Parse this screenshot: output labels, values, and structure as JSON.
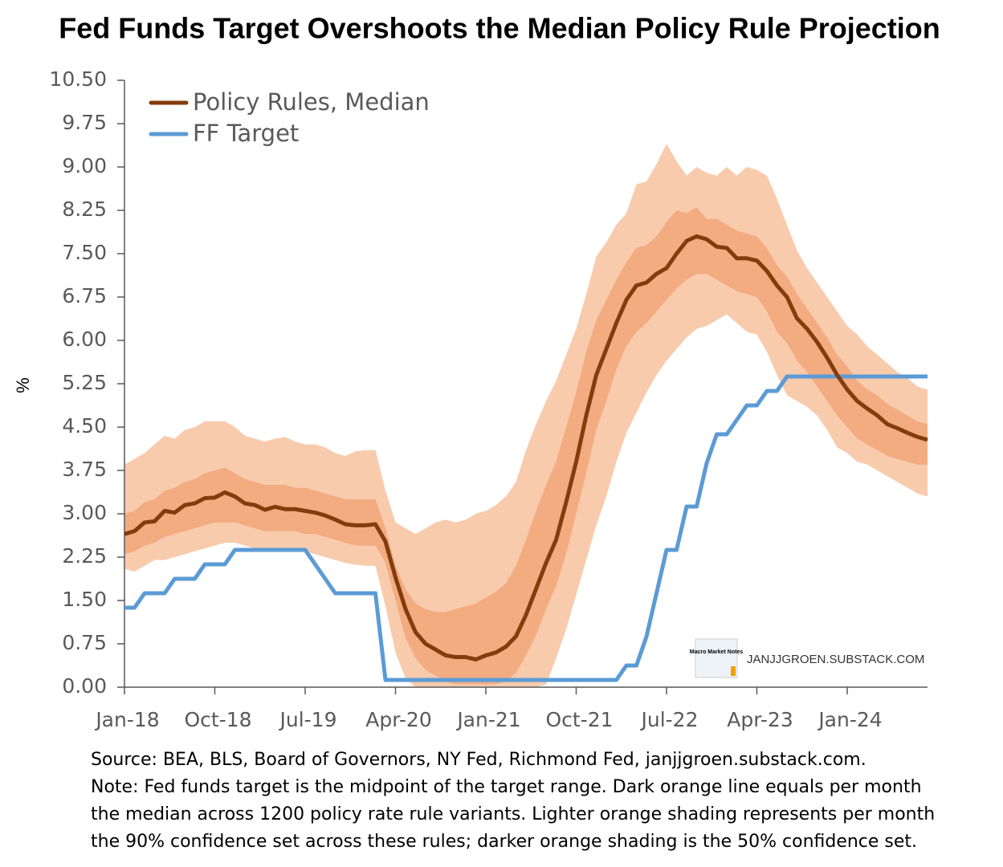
{
  "chart_data": {
    "type": "line",
    "title": "Fed Funds Target Overshoots the Median Policy Rule Projection",
    "ylabel": "%",
    "categories": [
      "Jan-18",
      null,
      null,
      null,
      null,
      null,
      null,
      null,
      null,
      "Oct-18",
      null,
      null,
      null,
      null,
      null,
      null,
      null,
      null,
      "Jul-19",
      null,
      null,
      null,
      null,
      null,
      null,
      null,
      null,
      "Apr-20",
      null,
      null,
      null,
      null,
      null,
      null,
      null,
      null,
      "Jan-21",
      null,
      null,
      null,
      null,
      null,
      null,
      null,
      null,
      "Oct-21",
      null,
      null,
      null,
      null,
      null,
      null,
      null,
      null,
      "Jul-22",
      null,
      null,
      null,
      null,
      null,
      null,
      null,
      null,
      "Apr-23",
      null,
      null,
      null,
      null,
      null,
      null,
      null,
      null,
      "Jan-24",
      null,
      null,
      null,
      null,
      null,
      null,
      null,
      null
    ],
    "ylim": [
      0,
      10.5
    ],
    "yticks": [
      {
        "value": 0,
        "label": "0.00"
      },
      0.75,
      {
        "value": 1.5,
        "label": "1.50"
      },
      2.25,
      {
        "value": 3,
        "label": "3.00"
      },
      3.75,
      {
        "value": 4.5,
        "label": "4.50"
      },
      5.25,
      {
        "value": 6,
        "label": "6.00"
      },
      6.75,
      {
        "value": 7.5,
        "label": "7.50"
      },
      8.25,
      {
        "value": 9,
        "label": "9.00"
      },
      9.75,
      {
        "value": 10.5,
        "label": "10.50"
      }
    ],
    "grid": false,
    "legend": "upper left",
    "series": [
      {
        "name": "Policy Rules, Median",
        "color": "#843c0c",
        "values": [
          2.65,
          2.7,
          2.85,
          2.87,
          3.05,
          3.02,
          3.15,
          3.18,
          3.27,
          3.28,
          3.37,
          3.3,
          3.18,
          3.15,
          3.07,
          3.12,
          3.08,
          3.08,
          3.05,
          3.02,
          2.97,
          2.9,
          2.82,
          2.8,
          2.8,
          2.82,
          2.52,
          1.9,
          1.35,
          0.95,
          0.75,
          0.65,
          0.55,
          0.52,
          0.52,
          0.48,
          0.55,
          0.6,
          0.7,
          0.88,
          1.25,
          1.7,
          2.15,
          2.55,
          3.2,
          3.9,
          4.7,
          5.4,
          5.85,
          6.3,
          6.7,
          6.95,
          7.0,
          7.15,
          7.25,
          7.5,
          7.72,
          7.8,
          7.75,
          7.62,
          7.6,
          7.42,
          7.42,
          7.38,
          7.2,
          6.95,
          6.75,
          6.38,
          6.2,
          5.97,
          5.7,
          5.4,
          5.15,
          4.95,
          4.82,
          4.7,
          4.55,
          4.48,
          4.4,
          4.33,
          4.28
        ]
      },
      {
        "name": "FF Target",
        "color": "#5b9bd5",
        "values": [
          1.375,
          1.375,
          1.625,
          1.625,
          1.625,
          1.875,
          1.875,
          1.875,
          2.125,
          2.125,
          2.125,
          2.375,
          2.375,
          2.375,
          2.375,
          2.375,
          2.375,
          2.375,
          2.375,
          2.125,
          1.875,
          1.625,
          1.625,
          1.625,
          1.625,
          1.625,
          0.125,
          0.125,
          0.125,
          0.125,
          0.125,
          0.125,
          0.125,
          0.125,
          0.125,
          0.125,
          0.125,
          0.125,
          0.125,
          0.125,
          0.125,
          0.125,
          0.125,
          0.125,
          0.125,
          0.125,
          0.125,
          0.125,
          0.125,
          0.125,
          0.375,
          0.375,
          0.875,
          1.625,
          2.375,
          2.375,
          3.125,
          3.125,
          3.875,
          4.375,
          4.375,
          4.625,
          4.875,
          4.875,
          5.125,
          5.125,
          5.375,
          5.375,
          5.375,
          5.375,
          5.375,
          5.375,
          5.375,
          5.375,
          5.375,
          5.375,
          5.375,
          5.375,
          5.375,
          5.375,
          5.375
        ]
      }
    ],
    "bands": [
      {
        "color": "#f8cbad",
        "lower": [
          2.05,
          2.0,
          2.1,
          2.2,
          2.2,
          2.25,
          2.3,
          2.35,
          2.4,
          2.45,
          2.5,
          2.5,
          2.45,
          2.4,
          2.35,
          2.35,
          2.35,
          2.35,
          2.35,
          2.3,
          2.25,
          2.2,
          2.15,
          2.12,
          2.1,
          2.1,
          1.4,
          0.6,
          0.15,
          0,
          0,
          0,
          0,
          0,
          0,
          0,
          0,
          0,
          0,
          0,
          0,
          0,
          0.05,
          0.5,
          1.0,
          1.6,
          2.2,
          2.8,
          3.3,
          3.9,
          4.4,
          4.75,
          5.1,
          5.4,
          5.65,
          5.85,
          6.05,
          6.2,
          6.25,
          6.35,
          6.45,
          6.3,
          6.15,
          6.1,
          5.8,
          5.4,
          5.05,
          4.95,
          4.85,
          4.7,
          4.45,
          4.15,
          4.05,
          3.9,
          3.85,
          3.75,
          3.65,
          3.55,
          3.45,
          3.35,
          3.3
        ],
        "upper": [
          3.85,
          3.95,
          4.05,
          4.2,
          4.35,
          4.3,
          4.45,
          4.5,
          4.6,
          4.6,
          4.6,
          4.5,
          4.35,
          4.3,
          4.25,
          4.3,
          4.33,
          4.25,
          4.2,
          4.2,
          4.15,
          4.05,
          4.0,
          4.08,
          4.1,
          4.1,
          3.4,
          2.85,
          2.75,
          2.65,
          2.75,
          2.85,
          2.9,
          2.85,
          2.9,
          3.0,
          3.05,
          3.15,
          3.3,
          3.55,
          4.1,
          4.55,
          4.95,
          5.3,
          5.75,
          6.2,
          6.8,
          7.45,
          7.7,
          8.0,
          8.2,
          8.7,
          8.75,
          9.05,
          9.4,
          9.1,
          8.85,
          9.0,
          8.9,
          8.85,
          9.0,
          8.85,
          9.0,
          8.95,
          8.85,
          8.45,
          8.0,
          7.55,
          7.25,
          7.0,
          6.75,
          6.5,
          6.25,
          6.1,
          5.9,
          5.75,
          5.6,
          5.45,
          5.35,
          5.2,
          5.15
        ]
      },
      {
        "color": "#f2ac80",
        "lower": [
          2.3,
          2.35,
          2.45,
          2.5,
          2.6,
          2.65,
          2.7,
          2.75,
          2.8,
          2.85,
          2.85,
          2.85,
          2.8,
          2.75,
          2.7,
          2.7,
          2.7,
          2.7,
          2.65,
          2.65,
          2.6,
          2.55,
          2.5,
          2.45,
          2.45,
          2.45,
          2.15,
          1.5,
          0.85,
          0.5,
          0.3,
          0.2,
          0.1,
          0.05,
          0.05,
          0.05,
          0.05,
          0.05,
          0.1,
          0.25,
          0.55,
          0.9,
          1.35,
          1.75,
          2.3,
          3.0,
          3.7,
          4.45,
          4.95,
          5.5,
          5.9,
          6.15,
          6.3,
          6.5,
          6.7,
          6.9,
          7.05,
          7.15,
          7.15,
          7.05,
          6.95,
          6.85,
          6.8,
          6.75,
          6.5,
          6.15,
          5.95,
          5.65,
          5.45,
          5.2,
          4.95,
          4.7,
          4.5,
          4.3,
          4.2,
          4.1,
          4.0,
          3.95,
          3.9,
          3.85,
          3.85
        ],
        "upper": [
          3.0,
          3.05,
          3.2,
          3.25,
          3.4,
          3.45,
          3.55,
          3.6,
          3.7,
          3.75,
          3.8,
          3.7,
          3.6,
          3.55,
          3.5,
          3.5,
          3.5,
          3.45,
          3.45,
          3.4,
          3.35,
          3.3,
          3.25,
          3.25,
          3.25,
          3.25,
          2.75,
          2.1,
          1.7,
          1.45,
          1.35,
          1.3,
          1.3,
          1.35,
          1.4,
          1.45,
          1.55,
          1.65,
          1.8,
          2.1,
          2.55,
          3.05,
          3.5,
          3.9,
          4.5,
          5.1,
          5.8,
          6.35,
          6.7,
          7.05,
          7.35,
          7.6,
          7.65,
          7.8,
          8.05,
          8.25,
          8.2,
          8.3,
          8.1,
          8.1,
          8.0,
          7.9,
          7.85,
          7.8,
          7.6,
          7.3,
          7.1,
          6.8,
          6.55,
          6.3,
          6.05,
          5.75,
          5.55,
          5.3,
          5.15,
          5.05,
          4.9,
          4.8,
          4.7,
          4.6,
          4.55
        ]
      }
    ],
    "annotations": [
      "Macro Market Notes",
      "JANJJGROEN.SUBSTACK.COM"
    ],
    "notes": [
      "Source: BEA, BLS, Board of Governors, NY Fed, Richmond Fed, janjjgroen.substack.com.",
      "Note: Fed funds target is the midpoint of the target range. Dark orange line equals per month",
      "the median across 1200 policy rate rule variants. Lighter orange shading represents per month",
      "the 90% confidence set across these rules; darker orange shading is the 50% confidence set."
    ]
  }
}
